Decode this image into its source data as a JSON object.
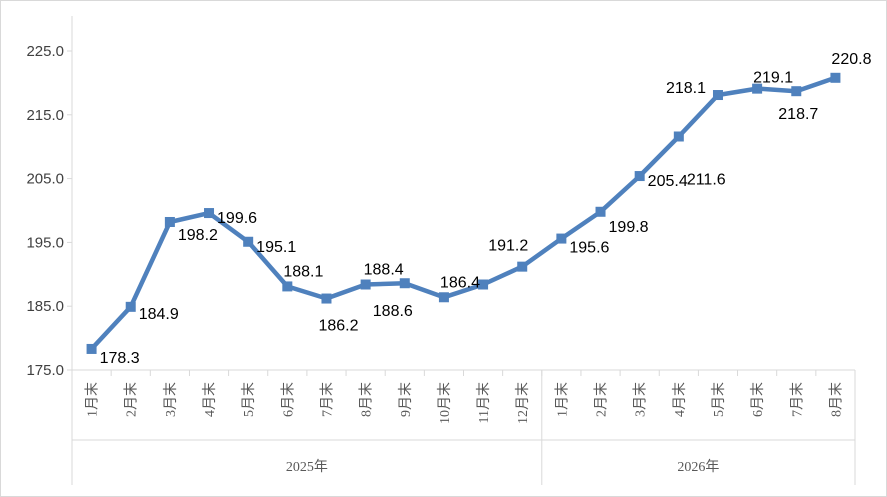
{
  "chart_data": {
    "type": "line",
    "title": "",
    "xlabel": "",
    "ylabel": "",
    "ylim": [
      175.0,
      225.0
    ],
    "yticks": [
      "175.0",
      "185.0",
      "195.0",
      "205.0",
      "215.0",
      "225.0"
    ],
    "grid": false,
    "legend": "none",
    "color": "#4F81BD",
    "groups": [
      {
        "label": "2025年",
        "categories": [
          "1月末",
          "2月末",
          "3月末",
          "4月末",
          "5月末",
          "6月末",
          "7月末",
          "8月末",
          "9月末",
          "10月末",
          "11月末",
          "12月末"
        ]
      },
      {
        "label": "2026年",
        "categories": [
          "1月末",
          "2月末",
          "3月末",
          "4月末",
          "5月末",
          "6月末",
          "7月末",
          "8月末"
        ]
      }
    ],
    "values": [
      178.3,
      184.9,
      198.2,
      199.6,
      195.1,
      188.1,
      186.2,
      188.4,
      188.6,
      186.4,
      188.4,
      191.2,
      195.6,
      199.8,
      205.4,
      211.6,
      218.1,
      219.1,
      218.7,
      220.8
    ],
    "data_labels": [
      "178.3",
      "184.9",
      "198.2",
      "199.6",
      "195.1",
      "188.1",
      "186.2",
      "188.4",
      "188.6",
      "186.4",
      "",
      "191.2",
      "195.6",
      "199.8",
      "205.4",
      "211.6",
      "218.1",
      "219.1",
      "218.7",
      "220.8"
    ]
  }
}
